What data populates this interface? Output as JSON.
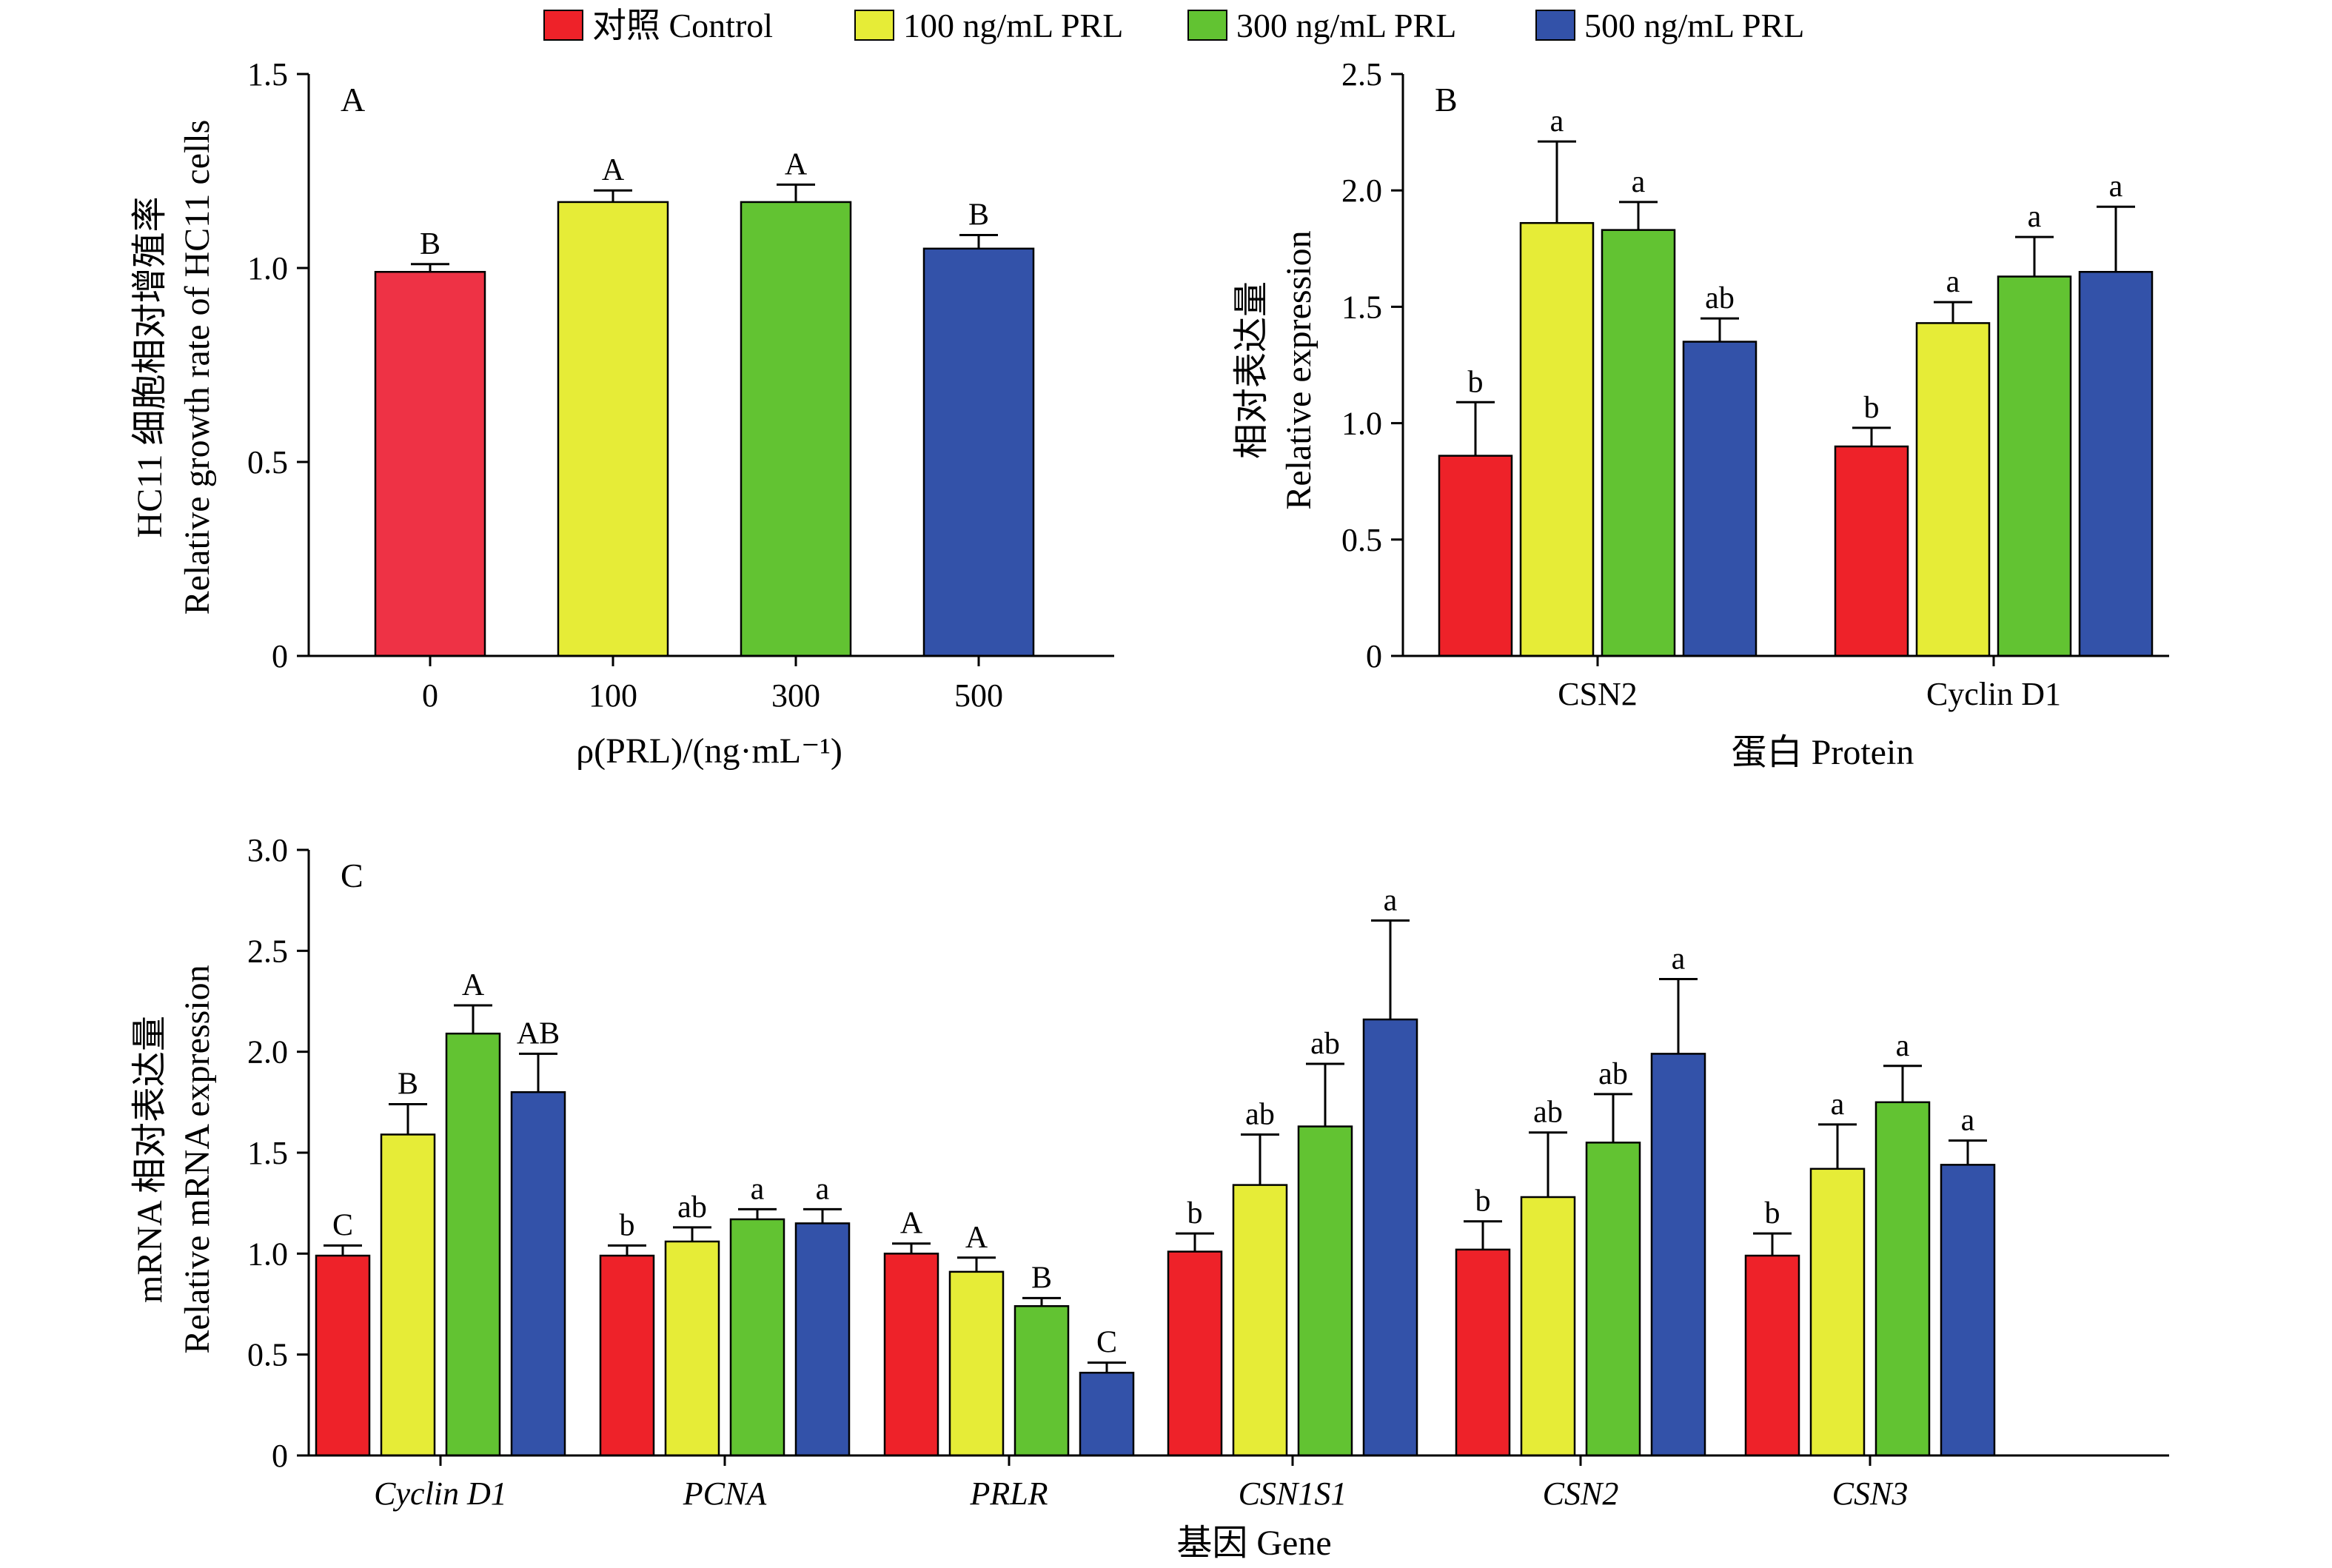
{
  "legend": [
    {
      "label": "对照 Control",
      "color": "#ee2229"
    },
    {
      "label": "100 ng/mL PRL",
      "color": "#e6ec37"
    },
    {
      "label": "300 ng/mL PRL",
      "color": "#62c332"
    },
    {
      "label": "500 ng/mL PRL",
      "color": "#3352a9"
    }
  ],
  "chart_data": [
    {
      "panel": "A",
      "type": "bar",
      "categories": [
        "0",
        "100",
        "300",
        "500"
      ],
      "colors": [
        "#ee3245",
        "#e6ec37",
        "#62c332",
        "#3352a9"
      ],
      "values": [
        0.99,
        1.17,
        1.17,
        1.05
      ],
      "errors": [
        0.02,
        0.03,
        0.045,
        0.035
      ],
      "significance": [
        "B",
        "A",
        "A",
        "B"
      ],
      "ylabel_cn": "HC11 细胞相对增殖率",
      "ylabel_en": "Relative growth rate of HC11 cells",
      "xlabel": "ρ(PRL)/(ng·mL⁻¹)",
      "ylim": [
        0,
        1.5
      ],
      "yticks": [
        "0",
        "0.5",
        "1.0",
        "1.5"
      ]
    },
    {
      "panel": "B",
      "type": "bar",
      "categories": [
        "CSN2",
        "Cyclin D1"
      ],
      "series": [
        {
          "values": [
            0.86,
            0.9
          ],
          "errors": [
            0.23,
            0.08
          ],
          "significance": [
            "b",
            "b"
          ]
        },
        {
          "values": [
            1.86,
            1.43
          ],
          "errors": [
            0.35,
            0.09
          ],
          "significance": [
            "a",
            "a"
          ]
        },
        {
          "values": [
            1.83,
            1.63
          ],
          "errors": [
            0.12,
            0.17
          ],
          "significance": [
            "a",
            "a"
          ]
        },
        {
          "values": [
            1.35,
            1.65
          ],
          "errors": [
            0.1,
            0.28
          ],
          "significance": [
            "ab",
            "a"
          ]
        }
      ],
      "ylabel_cn": "相对表达量",
      "ylabel_en": "Relative expression",
      "xlabel": "蛋白 Protein",
      "ylim": [
        0,
        2.5
      ],
      "yticks": [
        "0",
        "0.5",
        "1.0",
        "1.5",
        "2.0",
        "2.5"
      ]
    },
    {
      "panel": "C",
      "type": "bar",
      "categories": [
        "Cyclin D1",
        "PCNA",
        "PRLR",
        "CSN1S1",
        "CSN2",
        "CSN3"
      ],
      "series": [
        {
          "values": [
            0.99,
            0.99,
            1.0,
            1.01,
            1.02,
            0.99
          ],
          "errors": [
            0.05,
            0.05,
            0.05,
            0.09,
            0.14,
            0.11
          ],
          "significance": [
            "C",
            "b",
            "A",
            "b",
            "b",
            "b"
          ]
        },
        {
          "values": [
            1.59,
            1.06,
            0.91,
            1.34,
            1.28,
            1.42
          ],
          "errors": [
            0.15,
            0.07,
            0.07,
            0.25,
            0.32,
            0.22
          ],
          "significance": [
            "B",
            "ab",
            "A",
            "ab",
            "ab",
            "a"
          ]
        },
        {
          "values": [
            2.09,
            1.17,
            0.74,
            1.63,
            1.55,
            1.75
          ],
          "errors": [
            0.14,
            0.05,
            0.04,
            0.31,
            0.24,
            0.18
          ],
          "significance": [
            "A",
            "a",
            "B",
            "ab",
            "ab",
            "a"
          ]
        },
        {
          "values": [
            1.8,
            1.15,
            0.41,
            2.16,
            1.99,
            1.44
          ],
          "errors": [
            0.19,
            0.07,
            0.05,
            0.49,
            0.37,
            0.12
          ],
          "significance": [
            "AB",
            "a",
            "C",
            "a",
            "a",
            "a"
          ]
        }
      ],
      "ylabel_cn": "mRNA 相对表达量",
      "ylabel_en": "Relative mRNA expression",
      "xlabel": "基因 Gene",
      "ylim": [
        0,
        3.0
      ],
      "yticks": [
        "0",
        "0.5",
        "1.0",
        "1.5",
        "2.0",
        "2.5",
        "3.0"
      ]
    }
  ]
}
